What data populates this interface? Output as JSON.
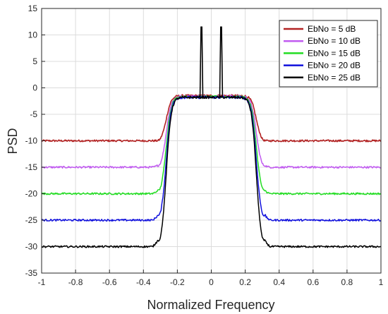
{
  "chart_data": {
    "type": "line",
    "title": "",
    "xlabel": "Normalized Frequency",
    "ylabel": "PSD",
    "xlim": [
      -1,
      1
    ],
    "ylim": [
      -35,
      15
    ],
    "x_ticks": [
      -1,
      -0.8,
      -0.6,
      -0.4,
      -0.2,
      0,
      0.2,
      0.4,
      0.6,
      0.8,
      1
    ],
    "x_tick_labels": [
      "-1",
      "-0.8",
      "-0.6",
      "-0.4",
      "-0.2",
      "0",
      "0.2",
      "0.4",
      "0.6",
      "0.8",
      "1"
    ],
    "y_ticks": [
      -35,
      -30,
      -25,
      -20,
      -15,
      -10,
      -5,
      0,
      5,
      10,
      15
    ],
    "y_tick_labels": [
      "-35",
      "-30",
      "-25",
      "-20",
      "-15",
      "-10",
      "-5",
      "0",
      "5",
      "10",
      "15"
    ],
    "grid": true,
    "legend_position": "top-right",
    "band_edge": 0.32,
    "passband_level": -1.8,
    "pilot_tones": [
      {
        "x": -0.058,
        "y": 11.5
      },
      {
        "x": 0.058,
        "y": 11.5
      }
    ],
    "series": [
      {
        "name": "EbNo = 5 dB",
        "color": "#b22222",
        "noise_floor": -10,
        "passband": -1.5
      },
      {
        "name": "EbNo = 10 dB",
        "color": "#c15bf0",
        "noise_floor": -15,
        "passband": -1.6
      },
      {
        "name": "EbNo = 15 dB",
        "color": "#22dd22",
        "noise_floor": -20,
        "passband": -1.7
      },
      {
        "name": "EbNo = 20 dB",
        "color": "#1010dd",
        "noise_floor": -25,
        "passband": -1.8
      },
      {
        "name": "EbNo = 25 dB",
        "color": "#000000",
        "noise_floor": -30,
        "passband": -1.8
      }
    ]
  }
}
